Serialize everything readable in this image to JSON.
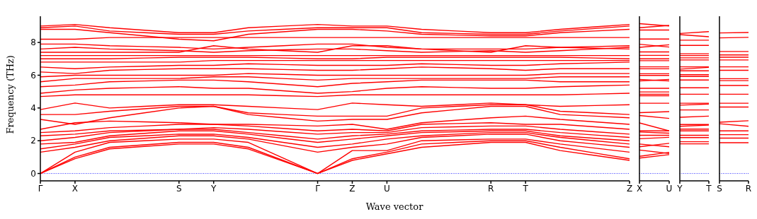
{
  "chart_data": [
    {
      "type": "line",
      "xlabel": "Wave vector",
      "ylabel": "Frequency (THz)",
      "color": "#ff0000",
      "categories": [
        "Γ",
        "X",
        null,
        null,
        "S",
        "Y",
        null,
        null,
        "Γ",
        "Z",
        "U",
        null,
        null,
        "R",
        "T",
        null,
        null,
        "Z"
      ],
      "ylim": [
        -0.45,
        9.6
      ],
      "yticks": [
        0,
        2,
        4,
        6,
        8
      ],
      "ref_lines": [
        {
          "axis": "y",
          "value": 0,
          "color": "#0000ff",
          "line_style": "dotted"
        }
      ],
      "series": [
        {
          "values": [
            0,
            0.9,
            1.5,
            1.65,
            1.8,
            1.8,
            1.5,
            0.75,
            0,
            0.8,
            1.2,
            1.6,
            1.75,
            1.9,
            1.9,
            1.4,
            1.1,
            0.8
          ]
        },
        {
          "values": [
            0,
            1.0,
            1.6,
            1.75,
            1.9,
            1.9,
            1.6,
            0.8,
            0,
            0.9,
            1.3,
            1.8,
            1.9,
            2.0,
            2.0,
            1.6,
            1.25,
            0.9
          ]
        },
        {
          "values": [
            0,
            1.3,
            1.9,
            2.0,
            2.1,
            2.1,
            1.9,
            0.95,
            0,
            1.4,
            1.4,
            2.0,
            2.05,
            2.1,
            2.1,
            1.8,
            1.55,
            1.3
          ]
        },
        {
          "values": [
            1.3,
            1.6,
            2.0,
            2.15,
            2.3,
            2.3,
            2.1,
            1.7,
            1.3,
            1.6,
            1.8,
            2.2,
            2.3,
            2.4,
            2.4,
            2.0,
            1.8,
            1.6
          ]
        },
        {
          "values": [
            1.5,
            1.8,
            2.2,
            2.3,
            2.4,
            2.4,
            2.2,
            1.9,
            1.6,
            1.8,
            2.1,
            2.3,
            2.4,
            2.5,
            2.5,
            2.2,
            2.0,
            1.8
          ]
        },
        {
          "values": [
            1.8,
            1.9,
            2.3,
            2.45,
            2.6,
            2.6,
            2.4,
            2.15,
            1.9,
            2.1,
            2.3,
            2.5,
            2.55,
            2.6,
            2.6,
            2.3,
            2.15,
            2.0
          ]
        },
        {
          "values": [
            2.0,
            2.2,
            2.5,
            2.6,
            2.7,
            2.7,
            2.5,
            2.3,
            2.1,
            2.3,
            2.4,
            2.6,
            2.65,
            2.7,
            2.7,
            2.5,
            2.35,
            2.2
          ]
        },
        {
          "values": [
            2.3,
            2.4,
            2.6,
            2.65,
            2.7,
            2.8,
            2.7,
            2.55,
            2.4,
            2.5,
            2.5,
            2.8,
            2.85,
            2.9,
            2.9,
            2.7,
            2.55,
            2.4
          ]
        },
        {
          "values": [
            2.5,
            2.6,
            2.8,
            2.9,
            3.0,
            3.0,
            2.9,
            2.75,
            2.6,
            2.7,
            2.6,
            3.0,
            3.05,
            3.1,
            3.0,
            3.0,
            2.85,
            2.7
          ]
        },
        {
          "values": [
            2.7,
            3.1,
            3.2,
            3.15,
            3.1,
            3.0,
            3.0,
            2.95,
            2.9,
            3.0,
            2.7,
            3.1,
            3.25,
            3.4,
            3.5,
            3.3,
            3.15,
            3.0
          ]
        },
        {
          "values": [
            3.3,
            3.0,
            3.4,
            3.7,
            4.0,
            4.1,
            3.6,
            3.4,
            3.2,
            3.3,
            3.3,
            3.7,
            3.9,
            4.1,
            4.1,
            3.6,
            3.5,
            3.4
          ]
        },
        {
          "values": [
            3.6,
            3.6,
            3.8,
            3.95,
            4.1,
            4.1,
            3.7,
            3.6,
            3.5,
            3.5,
            3.5,
            4.0,
            4.1,
            4.2,
            4.2,
            3.8,
            3.7,
            3.6
          ]
        },
        {
          "values": [
            3.9,
            4.3,
            4.0,
            4.1,
            4.2,
            4.2,
            4.1,
            4.0,
            3.9,
            4.3,
            4.2,
            4.1,
            4.2,
            4.3,
            4.2,
            4.1,
            4.15,
            4.2
          ]
        },
        {
          "values": [
            4.7,
            4.8,
            4.8,
            4.8,
            4.8,
            4.8,
            4.8,
            4.75,
            4.7,
            4.8,
            4.8,
            4.8,
            4.8,
            4.8,
            4.8,
            4.8,
            4.85,
            4.9
          ]
        },
        {
          "values": [
            4.9,
            5.1,
            5.2,
            5.25,
            5.3,
            5.2,
            5.2,
            5.05,
            4.9,
            5.0,
            5.2,
            5.3,
            5.25,
            5.2,
            5.2,
            5.3,
            5.35,
            5.4
          ]
        },
        {
          "values": [
            5.3,
            5.4,
            5.6,
            5.65,
            5.7,
            5.7,
            5.6,
            5.45,
            5.3,
            5.5,
            5.6,
            5.7,
            5.7,
            5.7,
            5.7,
            5.6,
            5.6,
            5.6
          ]
        },
        {
          "values": [
            5.6,
            5.8,
            5.8,
            5.8,
            5.8,
            5.9,
            5.9,
            5.8,
            5.7,
            5.8,
            5.8,
            5.8,
            5.8,
            5.8,
            5.8,
            5.9,
            5.9,
            5.9
          ]
        },
        {
          "values": [
            5.9,
            6.0,
            6.0,
            6.0,
            6.0,
            6.0,
            6.1,
            6.05,
            6.0,
            6.0,
            6.0,
            6.0,
            6.0,
            6.0,
            6.0,
            6.1,
            6.1,
            6.1
          ]
        },
        {
          "values": [
            6.2,
            6.1,
            6.3,
            6.35,
            6.4,
            6.4,
            6.4,
            6.35,
            6.3,
            6.3,
            6.4,
            6.5,
            6.45,
            6.4,
            6.3,
            6.4,
            6.4,
            6.4
          ]
        },
        {
          "values": [
            6.5,
            6.4,
            6.5,
            6.55,
            6.6,
            6.6,
            6.7,
            6.65,
            6.6,
            6.6,
            6.6,
            6.7,
            6.65,
            6.6,
            6.6,
            6.7,
            6.75,
            6.8
          ]
        },
        {
          "values": [
            6.8,
            6.8,
            6.8,
            6.8,
            6.8,
            6.9,
            6.9,
            6.9,
            6.9,
            6.9,
            6.9,
            6.9,
            6.9,
            6.9,
            6.9,
            6.9,
            6.9,
            6.9
          ]
        },
        {
          "values": [
            7.0,
            7.0,
            7.0,
            7.05,
            7.1,
            7.1,
            7.1,
            7.05,
            7.0,
            7.0,
            7.1,
            7.1,
            7.1,
            7.1,
            7.1,
            7.1,
            7.05,
            7.0
          ]
        },
        {
          "values": [
            7.2,
            7.2,
            7.2,
            7.2,
            7.2,
            7.2,
            7.2,
            7.2,
            7.2,
            7.2,
            7.2,
            7.2,
            7.2,
            7.2,
            7.2,
            7.2,
            7.2,
            7.2
          ]
        },
        {
          "values": [
            7.4,
            7.4,
            7.4,
            7.4,
            7.4,
            7.8,
            7.6,
            7.5,
            7.4,
            7.8,
            7.8,
            7.6,
            7.5,
            7.4,
            7.8,
            7.7,
            7.65,
            7.6
          ]
        },
        {
          "values": [
            7.6,
            7.7,
            7.6,
            7.55,
            7.5,
            7.4,
            7.5,
            7.55,
            7.6,
            7.6,
            7.5,
            7.4,
            7.45,
            7.5,
            7.4,
            7.5,
            7.6,
            7.7
          ]
        },
        {
          "values": [
            7.9,
            7.9,
            7.8,
            7.75,
            7.7,
            7.6,
            7.7,
            7.8,
            7.9,
            7.9,
            7.7,
            7.6,
            7.6,
            7.6,
            7.6,
            7.7,
            7.75,
            7.8
          ]
        },
        {
          "values": [
            8.2,
            8.2,
            8.3,
            8.3,
            8.3,
            8.3,
            8.3,
            8.3,
            8.3,
            8.3,
            8.3,
            8.3,
            8.3,
            8.3,
            8.3,
            8.3,
            8.3,
            8.3
          ]
        },
        {
          "values": [
            8.8,
            8.8,
            8.6,
            8.4,
            8.2,
            8.1,
            8.5,
            8.65,
            8.8,
            8.8,
            8.7,
            8.5,
            8.45,
            8.4,
            8.4,
            8.6,
            8.7,
            8.8
          ]
        },
        {
          "values": [
            8.9,
            9.0,
            8.7,
            8.6,
            8.5,
            8.5,
            8.7,
            8.8,
            8.9,
            8.9,
            8.9,
            8.6,
            8.55,
            8.5,
            8.5,
            8.7,
            8.85,
            9.0
          ]
        },
        {
          "values": [
            9.0,
            9.1,
            8.9,
            8.75,
            8.6,
            8.6,
            8.9,
            9.0,
            9.1,
            9.0,
            9.0,
            8.8,
            8.7,
            8.6,
            8.6,
            8.8,
            8.95,
            9.1
          ]
        }
      ]
    },
    {
      "type": "line",
      "color": "#ff0000",
      "categories": [
        "X",
        "U"
      ],
      "ylim": [
        -0.45,
        9.6
      ],
      "yticks": [
        0,
        2,
        4,
        6,
        8
      ],
      "tick_labels": "x",
      "ref_lines": [
        {
          "axis": "y",
          "value": 0,
          "color": "#0000ff",
          "line_style": "dotted"
        }
      ],
      "series": [
        {
          "values": [
            9.15,
            9.01
          ]
        },
        {
          "values": [
            8.9,
            9.04
          ]
        },
        {
          "values": [
            8.76,
            8.76
          ]
        },
        {
          "values": [
            8.21,
            8.21
          ]
        },
        {
          "values": [
            7.89,
            7.72
          ]
        },
        {
          "values": [
            7.7,
            7.86
          ]
        },
        {
          "values": [
            7.42,
            7.42
          ]
        },
        {
          "values": [
            7.21,
            7.21
          ]
        },
        {
          "values": [
            7.0,
            7.0
          ]
        },
        {
          "values": [
            6.89,
            6.89
          ]
        },
        {
          "values": [
            6.51,
            6.51
          ]
        },
        {
          "values": [
            6.39,
            6.39
          ]
        },
        {
          "values": [
            6.09,
            6.09
          ]
        },
        {
          "values": [
            5.99,
            5.99
          ]
        },
        {
          "values": [
            5.74,
            5.65
          ]
        },
        {
          "values": [
            5.65,
            5.74
          ]
        },
        {
          "values": [
            5.2,
            5.2
          ]
        },
        {
          "values": [
            4.98,
            4.98
          ]
        },
        {
          "values": [
            4.84,
            4.84
          ]
        },
        {
          "values": [
            4.75,
            4.75
          ]
        },
        {
          "values": [
            4.29,
            4.29
          ]
        },
        {
          "values": [
            3.71,
            3.78
          ]
        },
        {
          "values": [
            3.54,
            3.36
          ]
        },
        {
          "values": [
            3.09,
            2.6
          ]
        },
        {
          "values": [
            2.6,
            2.6
          ]
        },
        {
          "values": [
            2.53,
            2.46
          ]
        },
        {
          "values": [
            2.33,
            2.33
          ]
        },
        {
          "values": [
            2.12,
            2.21
          ]
        },
        {
          "values": [
            1.8,
            1.63
          ]
        },
        {
          "values": [
            1.63,
            1.84
          ]
        },
        {
          "values": [
            1.43,
            1.22
          ]
        },
        {
          "values": [
            1.05,
            1.29
          ]
        },
        {
          "values": [
            0.94,
            1.15
          ]
        }
      ]
    },
    {
      "type": "line",
      "color": "#ff0000",
      "categories": [
        "Y",
        "T"
      ],
      "ylim": [
        -0.45,
        9.6
      ],
      "yticks": [
        0,
        2,
        4,
        6,
        8
      ],
      "tick_labels": "x",
      "ref_lines": [
        {
          "axis": "y",
          "value": 0,
          "color": "#0000ff",
          "line_style": "dotted"
        }
      ],
      "series": [
        {
          "values": [
            8.55,
            8.66
          ]
        },
        {
          "values": [
            8.48,
            8.35
          ]
        },
        {
          "values": [
            8.14,
            8.14
          ]
        },
        {
          "values": [
            7.82,
            7.82
          ]
        },
        {
          "values": [
            7.31,
            7.31
          ]
        },
        {
          "values": [
            7.2,
            7.2
          ]
        },
        {
          "values": [
            7.06,
            7.06
          ]
        },
        {
          "values": [
            6.93,
            6.93
          ]
        },
        {
          "values": [
            6.51,
            6.51
          ]
        },
        {
          "values": [
            6.37,
            6.48
          ]
        },
        {
          "values": [
            6.27,
            6.27
          ]
        },
        {
          "values": [
            6.03,
            6.03
          ]
        },
        {
          "values": [
            5.92,
            5.92
          ]
        },
        {
          "values": [
            5.71,
            5.71
          ]
        },
        {
          "values": [
            5.23,
            5.23
          ]
        },
        {
          "values": [
            4.84,
            4.84
          ]
        },
        {
          "values": [
            4.29,
            4.29
          ]
        },
        {
          "values": [
            4.17,
            4.24
          ]
        },
        {
          "values": [
            3.88,
            3.88
          ]
        },
        {
          "values": [
            3.43,
            3.5
          ]
        },
        {
          "values": [
            2.99,
            2.99
          ]
        },
        {
          "values": [
            2.88,
            2.95
          ]
        },
        {
          "values": [
            2.71,
            2.71
          ]
        },
        {
          "values": [
            2.6,
            2.6
          ]
        },
        {
          "values": [
            2.33,
            2.33
          ]
        },
        {
          "values": [
            2.19,
            2.19
          ]
        },
        {
          "values": [
            1.94,
            1.94
          ]
        },
        {
          "values": [
            1.81,
            1.81
          ]
        }
      ]
    },
    {
      "type": "line",
      "color": "#ff0000",
      "categories": [
        "S",
        "R"
      ],
      "ylim": [
        -0.45,
        9.6
      ],
      "yticks": [
        0,
        2,
        4,
        6,
        8
      ],
      "tick_labels": "x",
      "ref_lines": [
        {
          "axis": "y",
          "value": 0,
          "color": "#0000ff",
          "line_style": "dotted"
        }
      ],
      "series": [
        {
          "values": [
            8.58,
            8.61
          ]
        },
        {
          "values": [
            8.28,
            8.31
          ]
        },
        {
          "values": [
            7.45,
            7.45
          ]
        },
        {
          "values": [
            7.24,
            7.24
          ]
        },
        {
          "values": [
            7.1,
            7.1
          ]
        },
        {
          "values": [
            6.93,
            6.93
          ]
        },
        {
          "values": [
            6.51,
            6.51
          ]
        },
        {
          "values": [
            6.3,
            6.3
          ]
        },
        {
          "values": [
            5.79,
            5.79
          ]
        },
        {
          "values": [
            5.67,
            5.67
          ]
        },
        {
          "values": [
            5.37,
            5.37
          ]
        },
        {
          "values": [
            4.84,
            4.84
          ]
        },
        {
          "values": [
            4.29,
            4.29
          ]
        },
        {
          "values": [
            4.06,
            4.06
          ]
        },
        {
          "values": [
            3.13,
            3.22
          ]
        },
        {
          "values": [
            3.04,
            2.88
          ]
        },
        {
          "values": [
            2.6,
            2.6
          ]
        },
        {
          "values": [
            2.37,
            2.37
          ]
        },
        {
          "values": [
            2.16,
            2.16
          ]
        },
        {
          "values": [
            1.88,
            1.88
          ]
        }
      ]
    }
  ]
}
